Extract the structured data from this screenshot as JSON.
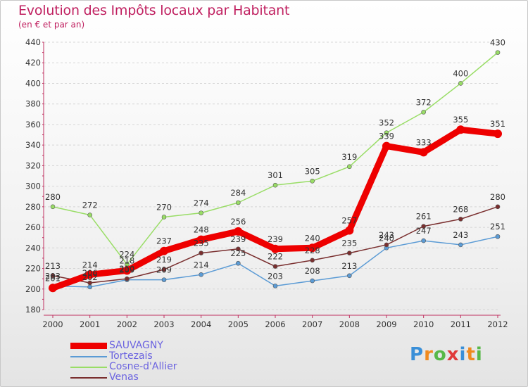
{
  "header": {
    "title": "Evolution des Impôts locaux par Habitant",
    "subtitle": "(en € et par an)"
  },
  "logo": {
    "text": "Proxiti",
    "colors": [
      "#3a8fd8",
      "#f08a1e",
      "#58b848",
      "#e03a3a",
      "#3a8fd8",
      "#f08a1e",
      "#58b848"
    ]
  },
  "chart_data": {
    "type": "line",
    "x": [
      "2000",
      "2001",
      "2002",
      "2003",
      "2004",
      "2005",
      "2006",
      "2007",
      "2008",
      "2009",
      "2010",
      "2011",
      "2012"
    ],
    "ylim": [
      180,
      440
    ],
    "yticks": [
      180,
      200,
      220,
      240,
      260,
      280,
      300,
      320,
      340,
      360,
      380,
      400,
      420,
      440
    ],
    "grid": "horizontal dashed",
    "legend_position": "bottom-left",
    "series": [
      {
        "name": "SAUVAGNY",
        "color": "#ee0000",
        "emphasis": true,
        "values": [
          201,
          214,
          218,
          237,
          248,
          256,
          239,
          240,
          257,
          339,
          333,
          355,
          351
        ],
        "labels": [
          "201",
          "214",
          "218",
          "237",
          "248",
          "256",
          "239",
          "240",
          "257",
          "339",
          "333",
          "355",
          "351"
        ]
      },
      {
        "name": "Tortezais",
        "color": "#5b9bd5",
        "values": [
          203,
          202,
          209,
          209,
          214,
          225,
          203,
          208,
          213,
          240,
          247,
          243,
          251
        ],
        "labels": [
          "203",
          "202",
          "209",
          "209",
          "214",
          "225",
          "203",
          "208",
          "213",
          "240",
          "247",
          "243",
          "251"
        ]
      },
      {
        "name": "Cosne-d'Allier",
        "color": "#99dd66",
        "values": [
          280,
          272,
          224,
          270,
          274,
          284,
          301,
          305,
          319,
          352,
          372,
          400,
          430
        ],
        "labels": [
          "280",
          "272",
          "224",
          "270",
          "274",
          "284",
          "301",
          "305",
          "319",
          "352",
          "372",
          "400",
          "430"
        ]
      },
      {
        "name": "Venas",
        "color": "#7a2f2f",
        "values": [
          213,
          206,
          210,
          219,
          235,
          239,
          222,
          228,
          235,
          243,
          261,
          268,
          280
        ],
        "labels": [
          "213",
          "206",
          "210",
          "219",
          "235",
          "239",
          "222",
          "228",
          "235",
          "243",
          "261",
          "268",
          "280"
        ]
      }
    ]
  }
}
